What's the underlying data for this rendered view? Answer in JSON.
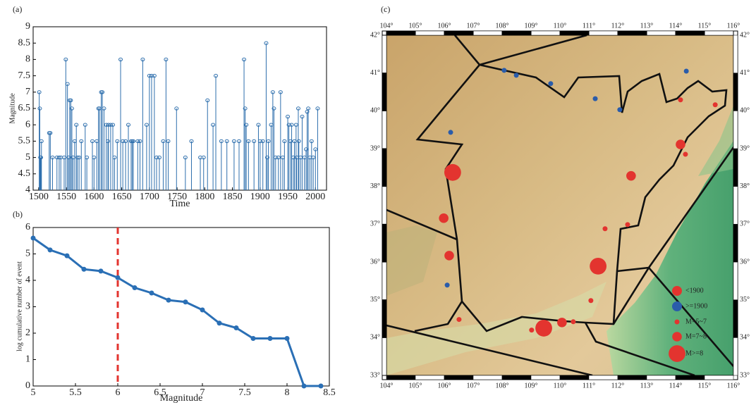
{
  "chart_data": [
    {
      "type": "stem",
      "panel": "(a)",
      "x_label": "Time",
      "y_label": "Magnitude",
      "color": "#2e6fad",
      "x": [
        1501,
        1502,
        1503,
        1504,
        1505,
        1519,
        1521,
        1525,
        1533,
        1537,
        1540,
        1546,
        1549,
        1552,
        1554,
        1556,
        1558,
        1560,
        1562,
        1565,
        1568,
        1570,
        1573,
        1577,
        1584,
        1587,
        1597,
        1600,
        1605,
        1608,
        1610,
        1613,
        1615,
        1618,
        1622,
        1625,
        1626,
        1630,
        1634,
        1637,
        1642,
        1648,
        1652,
        1657,
        1662,
        1667,
        1669,
        1671,
        1679,
        1683,
        1688,
        1695,
        1700,
        1704,
        1709,
        1713,
        1718,
        1725,
        1730,
        1734,
        1749,
        1765,
        1776,
        1792,
        1798,
        1805,
        1815,
        1820,
        1830,
        1840,
        1853,
        1862,
        1871,
        1873,
        1875,
        1879,
        1889,
        1897,
        1900,
        1905,
        1911,
        1913,
        1915,
        1920,
        1923,
        1925,
        1928,
        1933,
        1937,
        1941,
        1944,
        1950,
        1952,
        1955,
        1957,
        1960,
        1962,
        1965,
        1966,
        1969,
        1970,
        1973,
        1976,
        1980,
        1983,
        1985,
        1987,
        1990,
        1993,
        1996,
        2000,
        2004
      ],
      "values": [
        7.0,
        6.5,
        5.0,
        5.0,
        5.5,
        5.75,
        5.75,
        5.0,
        5.0,
        5.0,
        5.0,
        5.0,
        8.0,
        7.25,
        5.0,
        6.75,
        6.75,
        6.5,
        5.0,
        5.5,
        6.0,
        5.0,
        5.0,
        5.5,
        6.0,
        5.0,
        5.5,
        5.0,
        5.5,
        6.5,
        6.5,
        7.0,
        7.0,
        6.5,
        6.0,
        5.5,
        6.0,
        6.0,
        6.0,
        5.0,
        5.5,
        8.0,
        5.5,
        5.5,
        6.0,
        5.5,
        5.5,
        5.5,
        5.5,
        5.5,
        8.0,
        6.0,
        7.5,
        7.5,
        7.5,
        5.0,
        5.0,
        5.5,
        8.0,
        5.5,
        6.5,
        5.0,
        5.5,
        5.0,
        5.0,
        6.75,
        6.0,
        7.5,
        5.5,
        5.5,
        5.5,
        5.5,
        8.0,
        6.5,
        6.0,
        5.5,
        5.5,
        6.0,
        5.5,
        5.5,
        8.5,
        5.0,
        5.5,
        6.0,
        7.0,
        6.5,
        5.0,
        5.0,
        7.0,
        5.0,
        5.5,
        6.25,
        6.0,
        5.5,
        6.0,
        5.0,
        5.5,
        6.0,
        5.0,
        6.5,
        5.5,
        5.0,
        6.25,
        5.0,
        5.25,
        6.4,
        6.5,
        5.0,
        5.5,
        5.0,
        5.25,
        6.5
      ],
      "xlim": [
        1490,
        2020
      ],
      "xticks": [
        1500,
        1550,
        1600,
        1650,
        1700,
        1750,
        1800,
        1850,
        1900,
        1950,
        2000
      ],
      "ylim": [
        4,
        9
      ],
      "yticks": [
        4,
        4.5,
        5,
        5.5,
        6,
        6.5,
        7,
        7.5,
        8,
        8.5,
        9
      ]
    },
    {
      "type": "line",
      "panel": "(b)",
      "x_label": "Magnitude",
      "y_label": "log cumulative number of event",
      "color": "#2a6fb5",
      "x": [
        5,
        5.2,
        5.4,
        5.6,
        5.8,
        6,
        6.2,
        6.4,
        6.6,
        6.8,
        7,
        7.2,
        7.4,
        7.6,
        7.8,
        8,
        8.2,
        8.4
      ],
      "values": [
        5.6,
        5.15,
        4.93,
        4.42,
        4.35,
        4.1,
        3.72,
        3.52,
        3.25,
        3.18,
        2.88,
        2.38,
        2.2,
        1.8,
        1.8,
        1.8,
        0,
        0
      ],
      "vline": 6,
      "vline_color": "#e3342f",
      "xlim": [
        5,
        8.5
      ],
      "xticks": [
        5,
        5.5,
        6,
        6.5,
        7,
        7.5,
        8,
        8.5
      ],
      "ylim": [
        0,
        6
      ],
      "yticks": [
        0,
        1,
        2,
        3,
        4,
        5,
        6
      ]
    },
    {
      "type": "map",
      "panel": "(c)",
      "series": [
        {
          "name": "<1900",
          "color": "#e3342f",
          "x": [
            106.29,
            111.32,
            109.44,
            105.98,
            106.17,
            112.46,
            114.17,
            110.07,
            106.51,
            109.02,
            110.46,
            111.07,
            111.56,
            112.34,
            114.17,
            114.34,
            115.37
          ],
          "y": [
            38.37,
            35.89,
            34.25,
            37.16,
            36.17,
            38.28,
            39.11,
            34.4,
            34.48,
            34.2,
            34.42,
            34.98,
            36.88,
            36.99,
            40.29,
            38.85,
            40.16
          ],
          "sizes": [
            8,
            8,
            8,
            7.5,
            7.5,
            7.5,
            7.5,
            7.5,
            6,
            6,
            6,
            6,
            6,
            6,
            6,
            6,
            6
          ]
        },
        {
          "name": ">=1900",
          "color": "#2a5caa",
          "x": [
            108.07,
            108.49,
            109.68,
            111.22,
            112.07,
            114.37,
            106.22,
            106.1
          ],
          "y": [
            41.07,
            40.94,
            40.72,
            40.32,
            40.03,
            41.05,
            39.43,
            35.39
          ],
          "sizes": [
            6,
            6,
            6,
            6,
            6,
            6,
            6,
            6
          ]
        }
      ],
      "size_legend": [
        {
          "label": "M=5~7",
          "value": 6
        },
        {
          "label": "M=7~8",
          "value": 7.5
        },
        {
          "label": "M>=8",
          "value": 8
        }
      ],
      "xlim": [
        104,
        116
      ],
      "ylim": [
        33,
        42
      ],
      "xticks": [
        {
          "value": 104,
          "label": "104°"
        },
        {
          "value": 105,
          "label": "105°"
        },
        {
          "value": 106,
          "label": "106°"
        },
        {
          "value": 107,
          "label": "107°"
        },
        {
          "value": 108,
          "label": "108°"
        },
        {
          "value": 109,
          "label": "109°"
        },
        {
          "value": 110,
          "label": "110°"
        },
        {
          "value": 111,
          "label": "111°"
        },
        {
          "value": 112,
          "label": "112°"
        },
        {
          "value": 113,
          "label": "113°"
        },
        {
          "value": 114,
          "label": "114°"
        },
        {
          "value": 115,
          "label": "115°"
        },
        {
          "value": 116,
          "label": "116°"
        }
      ],
      "yticks": [
        {
          "value": 33,
          "label": "33°"
        },
        {
          "value": 34,
          "label": "34°"
        },
        {
          "value": 35,
          "label": "35°"
        },
        {
          "value": 36,
          "label": "36°"
        },
        {
          "value": 37,
          "label": "37°"
        },
        {
          "value": 38,
          "label": "38°"
        },
        {
          "value": 39,
          "label": "39°"
        },
        {
          "value": 40,
          "label": "40°"
        },
        {
          "value": 41,
          "label": "41°"
        },
        {
          "value": 42,
          "label": "42°"
        }
      ]
    }
  ]
}
